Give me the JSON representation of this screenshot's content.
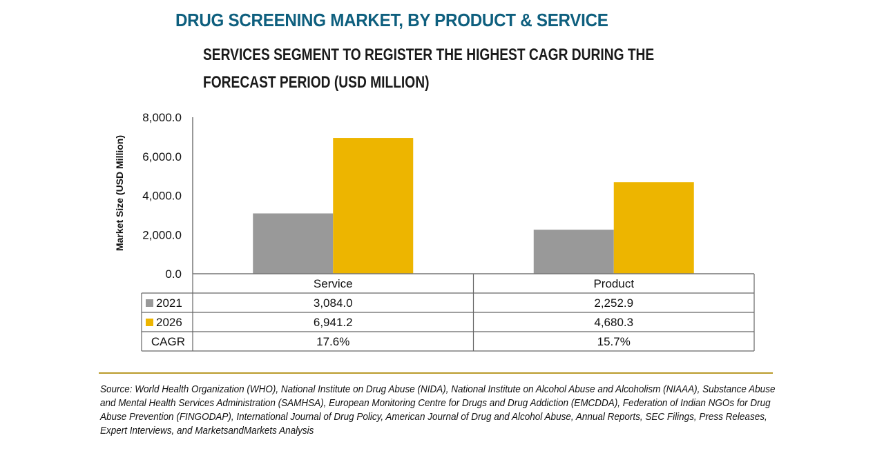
{
  "header": {
    "title": "DRUG SCREENING MARKET, BY PRODUCT & SERVICE",
    "subtitle": "SERVICES SEGMENT TO REGISTER THE HIGHEST CAGR DURING THE FORECAST PERIOD (USD MILLION)"
  },
  "colors": {
    "title": "#0e5f7e",
    "series_2021": "#999999",
    "series_2026": "#edb500",
    "rule": "#b99a2a"
  },
  "chart_data": {
    "type": "bar",
    "title": "DRUG SCREENING MARKET, BY PRODUCT & SERVICE",
    "subtitle": "SERVICES SEGMENT TO REGISTER THE HIGHEST CAGR DURING THE FORECAST PERIOD (USD MILLION)",
    "xlabel": "",
    "ylabel": "Market Size (USD Million)",
    "ylim": [
      0,
      8000
    ],
    "yticks": [
      0,
      2000,
      4000,
      6000,
      8000
    ],
    "ytick_labels": [
      "0.0",
      "2,000.0",
      "4,000.0",
      "6,000.0",
      "8,000.0"
    ],
    "categories": [
      "Service",
      "Product"
    ],
    "series": [
      {
        "name": "2021",
        "values": [
          3084.0,
          2252.9
        ],
        "labels": [
          "3,084.0",
          "2,252.9"
        ]
      },
      {
        "name": "2026",
        "values": [
          6941.2,
          4680.3
        ],
        "labels": [
          "6,941.2",
          "4,680.3"
        ]
      }
    ],
    "extra_rows": [
      {
        "name": "CAGR",
        "labels": [
          "17.6%",
          "15.7%"
        ]
      }
    ],
    "legend": "data-table-left",
    "grid": false
  },
  "footer": {
    "source": "Source: World Health Organization (WHO), National Institute on Drug Abuse (NIDA), National Institute on Alcohol Abuse and Alcoholism (NIAAA), Substance Abuse and Mental Health Services Administration (SAMHSA), European Monitoring Centre for Drugs and Drug Addiction (EMCDDA), Federation of Indian NGOs for Drug Abuse Prevention (FINGODAP), International Journal of Drug Policy, American Journal of Drug and Alcohol Abuse, Annual Reports, SEC Filings, Press Releases, Expert Interviews, and MarketsandMarkets Analysis"
  }
}
